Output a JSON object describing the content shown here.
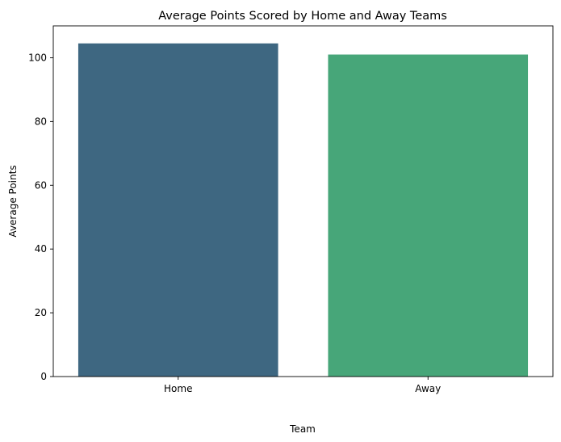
{
  "chart_data": {
    "type": "bar",
    "title": "Average Points Scored by Home and Away Teams",
    "xlabel": "Team",
    "ylabel": "Average Points",
    "categories": [
      "Home",
      "Away"
    ],
    "values": [
      104.5,
      101.0
    ],
    "colors": [
      "#3e6781",
      "#47a679"
    ],
    "ylim": [
      0,
      110
    ],
    "yticks": [
      0,
      20,
      40,
      60,
      80,
      100
    ],
    "grid": false,
    "legend": "none"
  }
}
